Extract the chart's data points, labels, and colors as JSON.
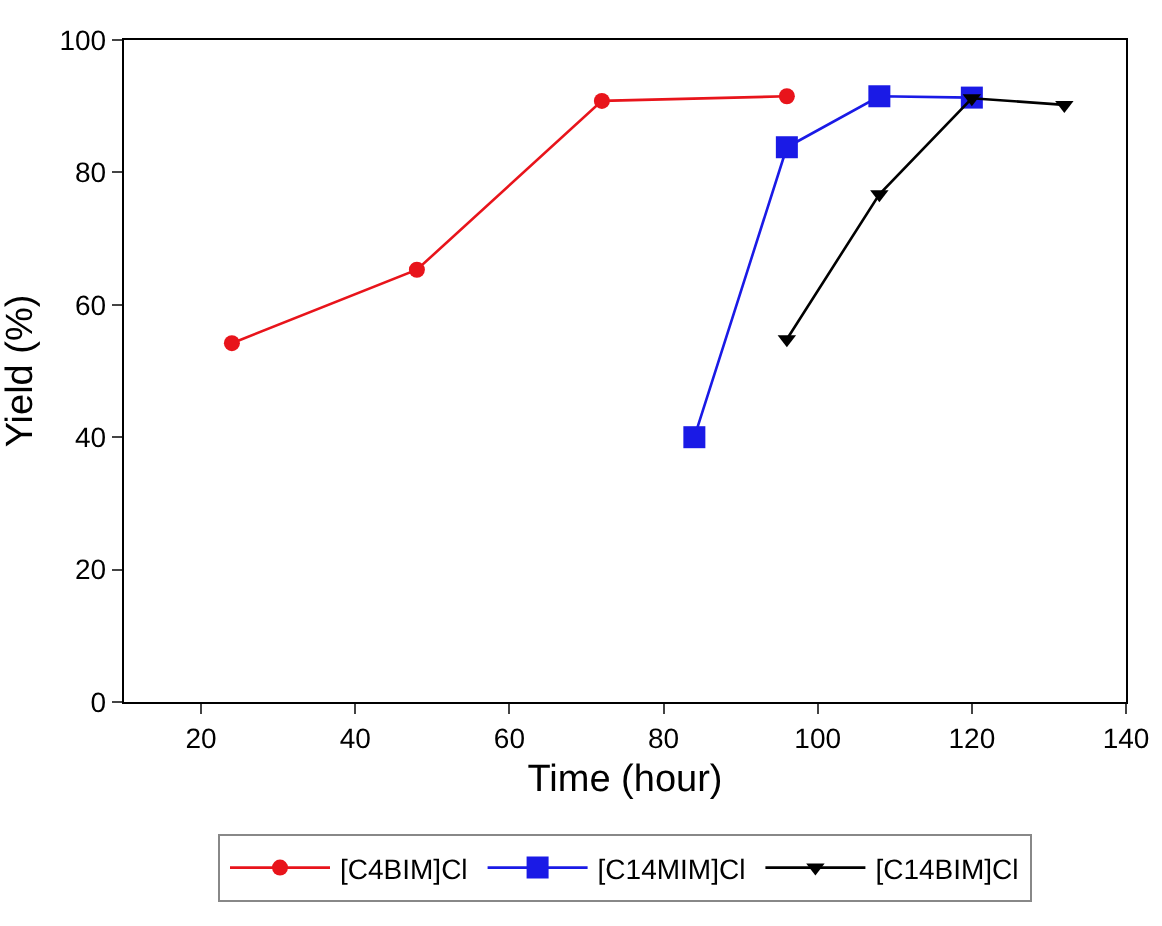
{
  "chart_data": {
    "type": "line",
    "xlabel": "Time (hour)",
    "ylabel": "Yield (%)",
    "xlim": [
      10,
      140
    ],
    "xticks": [
      20,
      40,
      60,
      80,
      100,
      120,
      140
    ],
    "ylim": [
      0,
      100
    ],
    "yticks": [
      0,
      20,
      40,
      60,
      80,
      100
    ],
    "grid": false,
    "legend": "bottom",
    "series": [
      {
        "name": "[C4BIM]Cl",
        "color": "#e8141b",
        "marker": "circle",
        "x": [
          24,
          48,
          72,
          96
        ],
        "values": [
          54.2,
          65.3,
          90.8,
          91.5
        ]
      },
      {
        "name": "[C14MIM]Cl",
        "color": "#1a1ae6",
        "marker": "square",
        "x": [
          84,
          96,
          108,
          120
        ],
        "values": [
          40,
          83.8,
          91.5,
          91.3
        ]
      },
      {
        "name": "[C14BIM]Cl",
        "color": "#000000",
        "marker": "triangle",
        "x": [
          96,
          108,
          120,
          132
        ],
        "values": [
          54.8,
          76.7,
          91.2,
          90.2
        ]
      }
    ]
  }
}
